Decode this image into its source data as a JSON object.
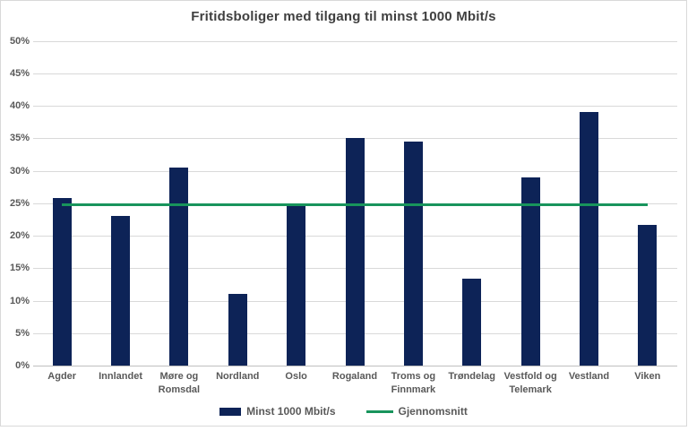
{
  "title": "Fritidsboliger med tilgang til minst 1000 Mbit/s",
  "colors": {
    "bar": "#0D2357",
    "average_line": "#18945C",
    "gridline": "#D9D9D9",
    "axis_text": "#595959",
    "title_text": "#3F3F3F",
    "chart_border": "#D9D9D9",
    "background": "#FFFFFF"
  },
  "chart_data": {
    "type": "bar",
    "title": "Fritidsboliger med tilgang til minst 1000 Mbit/s",
    "categories": [
      "Agder",
      "Innlandet",
      "Møre og\nRomsdal",
      "Nordland",
      "Oslo",
      "Rogaland",
      "Troms og\nFinnmark",
      "Trøndelag",
      "Vestfold og\nTelemark",
      "Vestland",
      "Viken"
    ],
    "series": [
      {
        "name": "Minst 1000 Mbit/s",
        "type": "bar",
        "color": "#0D2357",
        "values": [
          25.8,
          23.0,
          30.5,
          11.0,
          24.5,
          35.0,
          34.5,
          13.4,
          29.0,
          39.0,
          21.6
        ]
      },
      {
        "name": "Gjennomsnitt",
        "type": "line",
        "color": "#18945C",
        "value": 24.7
      }
    ],
    "xlabel": "",
    "ylabel": "",
    "ylim": [
      0,
      50
    ],
    "y_ticks": [
      {
        "value": 0,
        "label": "0%"
      },
      {
        "value": 5,
        "label": "5%"
      },
      {
        "value": 10,
        "label": "10%"
      },
      {
        "value": 15,
        "label": "15%"
      },
      {
        "value": 20,
        "label": "20%"
      },
      {
        "value": 25,
        "label": "25%"
      },
      {
        "value": 30,
        "label": "30%"
      },
      {
        "value": 35,
        "label": "35%"
      },
      {
        "value": 40,
        "label": "40%"
      },
      {
        "value": 45,
        "label": "45%"
      },
      {
        "value": 50,
        "label": "50%"
      }
    ],
    "grid": true,
    "legend_position": "bottom"
  }
}
